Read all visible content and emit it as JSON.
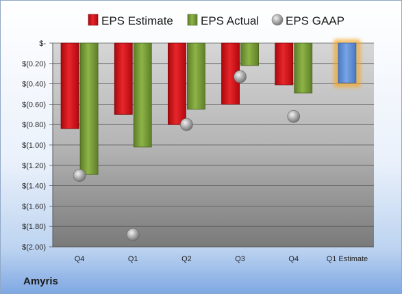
{
  "company": "Amyris",
  "chart_data": {
    "type": "bar",
    "categories": [
      "Q4",
      "Q1",
      "Q2",
      "Q3",
      "Q4",
      "Q1 Estimate"
    ],
    "series": [
      {
        "name": "EPS Estimate",
        "values": [
          -0.84,
          -0.7,
          -0.8,
          -0.6,
          -0.41,
          null
        ],
        "color": "#d01a1f"
      },
      {
        "name": "EPS Actual",
        "values": [
          -1.29,
          -1.02,
          -0.65,
          -0.22,
          -0.49,
          null
        ],
        "color": "#7ea039"
      },
      {
        "name": "EPS GAAP",
        "values": [
          -1.3,
          -1.88,
          -0.8,
          -0.33,
          -0.72,
          null
        ],
        "color": "#9a9a9a"
      }
    ],
    "q1_estimate": {
      "value": -0.39,
      "color": "#5f8fd6",
      "glow": "#f5a623"
    },
    "ylim": [
      -2.0,
      0
    ],
    "yticks": [
      0,
      -0.2,
      -0.4,
      -0.6,
      -0.8,
      -1.0,
      -1.2,
      -1.4,
      -1.6,
      -1.8,
      -2.0
    ],
    "ytick_labels": [
      "$-",
      "$(0.20)",
      "$(0.40)",
      "$(0.60)",
      "$(0.80)",
      "$(1.00)",
      "$(1.20)",
      "$(1.40)",
      "$(1.60)",
      "$(1.80)",
      "$(2.00)"
    ],
    "grid": true,
    "legend": "top"
  }
}
